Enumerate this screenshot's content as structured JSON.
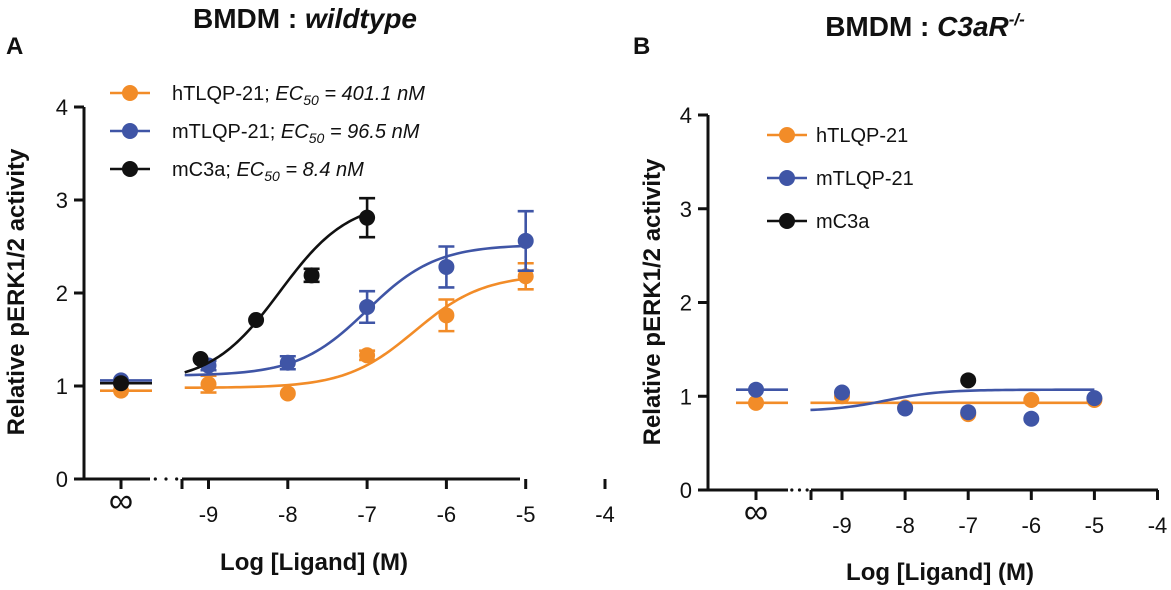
{
  "chart_data": [
    {
      "panel_label": "A",
      "type": "line",
      "title": "BMDM : ",
      "title_italic": "wildtype",
      "title_super": "",
      "xlabel": "Log [Ligand] (M)",
      "ylabel": "Relative pERK1/2 activity",
      "xlim": [
        -9.7,
        -4
      ],
      "ylim": [
        0,
        4
      ],
      "x_ticks": [
        -9,
        -8,
        -7,
        -6,
        -5,
        -4
      ],
      "y_ticks": [
        0,
        1,
        2,
        3,
        4
      ],
      "zero_label": "∞",
      "legend_position": "top-left",
      "series": [
        {
          "name": "hTLQP-21",
          "ec50_label": "EC",
          "ec50_sub": "50",
          "ec50_value": " = 401.1 nM",
          "color": "#F28C28",
          "baseline_value": 0.95,
          "x": [
            -9,
            -8,
            -7,
            -6,
            -5
          ],
          "y": [
            1.02,
            0.92,
            1.33,
            1.76,
            2.18
          ],
          "err": [
            0.09,
            0,
            0.05,
            0.17,
            0.14
          ],
          "fit": {
            "bottom": 0.98,
            "top": 2.2,
            "logec50": -6.4
          },
          "fit_range": [
            -9.3,
            -5
          ]
        },
        {
          "name": "mTLQP-21",
          "ec50_label": "EC",
          "ec50_sub": "50",
          "ec50_value": " = 96.5 nM",
          "color": "#3F55A6",
          "baseline_value": 1.06,
          "x": [
            -9,
            -8,
            -7,
            -6,
            -5
          ],
          "y": [
            1.22,
            1.25,
            1.85,
            2.28,
            2.56
          ],
          "err": [
            0.05,
            0.07,
            0.17,
            0.22,
            0.32
          ],
          "fit": {
            "bottom": 1.11,
            "top": 2.52,
            "logec50": -7.0
          },
          "fit_range": [
            -9.3,
            -5
          ]
        },
        {
          "name": "mC3a",
          "ec50_label": "EC",
          "ec50_sub": "50",
          "ec50_value": " = 8.4 nM",
          "color": "#111111",
          "baseline_value": 1.03,
          "x": [
            -9.1,
            -8.4,
            -7.7,
            -7
          ],
          "y": [
            1.29,
            1.71,
            2.19,
            2.81
          ],
          "err": [
            0,
            0,
            0.07,
            0.21
          ],
          "fit": {
            "bottom": 1.03,
            "top": 3.0,
            "logec50": -8.1
          },
          "fit_range": [
            -9.3,
            -7
          ]
        }
      ]
    },
    {
      "panel_label": "B",
      "type": "line",
      "title": "BMDM : ",
      "title_italic": "C3aR",
      "title_super": "-/-",
      "xlabel": "Log [Ligand] (M)",
      "ylabel": "Relative pERK1/2 activity",
      "xlim": [
        -9.5,
        -4
      ],
      "ylim": [
        0,
        4
      ],
      "x_ticks": [
        -9,
        -8,
        -7,
        -6,
        -5,
        -4
      ],
      "y_ticks": [
        0,
        1,
        2,
        3,
        4
      ],
      "zero_label": "∞",
      "legend_position": "top-left",
      "series": [
        {
          "name": "hTLQP-21",
          "color": "#F28C28",
          "baseline_value": 0.93,
          "x": [
            -9,
            -8,
            -7,
            -6,
            -5
          ],
          "y": [
            1.0,
            0.88,
            0.81,
            0.96,
            0.96
          ],
          "err": [
            0,
            0,
            0,
            0,
            0
          ],
          "fit": {
            "bottom": 0.93,
            "top": 0.93,
            "logec50": -7.5
          },
          "fit_range": [
            -9.5,
            -5
          ]
        },
        {
          "name": "mTLQP-21",
          "color": "#3F55A6",
          "baseline_value": 1.07,
          "x": [
            -9,
            -8,
            -7,
            -6,
            -5
          ],
          "y": [
            1.04,
            0.87,
            0.83,
            0.76,
            0.98
          ],
          "err": [
            0,
            0,
            0,
            0,
            0
          ],
          "fit": {
            "bottom": 0.84,
            "top": 1.07,
            "logec50": -8.3
          },
          "fit_range": [
            -9.5,
            -5
          ]
        },
        {
          "name": "mC3a",
          "color": "#111111",
          "baseline_value": null,
          "x": [
            -7
          ],
          "y": [
            1.17
          ],
          "err": [
            0
          ],
          "fit": null,
          "fit_range": null
        }
      ]
    }
  ]
}
